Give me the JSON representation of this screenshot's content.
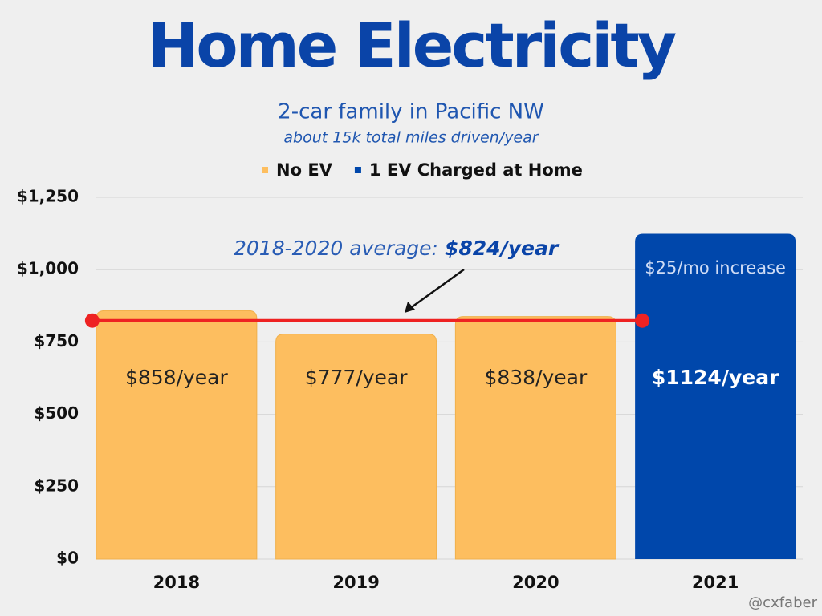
{
  "chart_data": {
    "type": "bar",
    "title": "Home Electricity",
    "subtitle": "2-car family in Pacific NW",
    "subtitle2": "about 15k total miles driven/year",
    "categories": [
      "2018",
      "2019",
      "2020",
      "2021"
    ],
    "series": [
      {
        "name": "No EV",
        "color": "#fdbe5f",
        "values": [
          858,
          777,
          838,
          null
        ],
        "value_labels": [
          "$858/year",
          "$777/year",
          "$838/year",
          null
        ]
      },
      {
        "name": "1 EV Charged at Home",
        "color": "#0047ab",
        "values": [
          null,
          null,
          null,
          1124
        ],
        "value_labels": [
          null,
          null,
          null,
          "$1124/year"
        ]
      }
    ],
    "ylim": [
      0,
      1250
    ],
    "yticks": [
      {
        "value": 0,
        "label": "$0"
      },
      {
        "value": 250,
        "label": "$250"
      },
      {
        "value": 500,
        "label": "$500"
      },
      {
        "value": 750,
        "label": "$750"
      },
      {
        "value": 1000,
        "label": "$1,000"
      },
      {
        "value": 1250,
        "label": "$1,250"
      }
    ],
    "grid": true,
    "average_line": {
      "value": 824,
      "label": "2018-2020 average:",
      "value_label": "$824/year",
      "color": "#ee2222"
    },
    "annotation": "$25/mo increase",
    "credit": "@cxfaber"
  }
}
